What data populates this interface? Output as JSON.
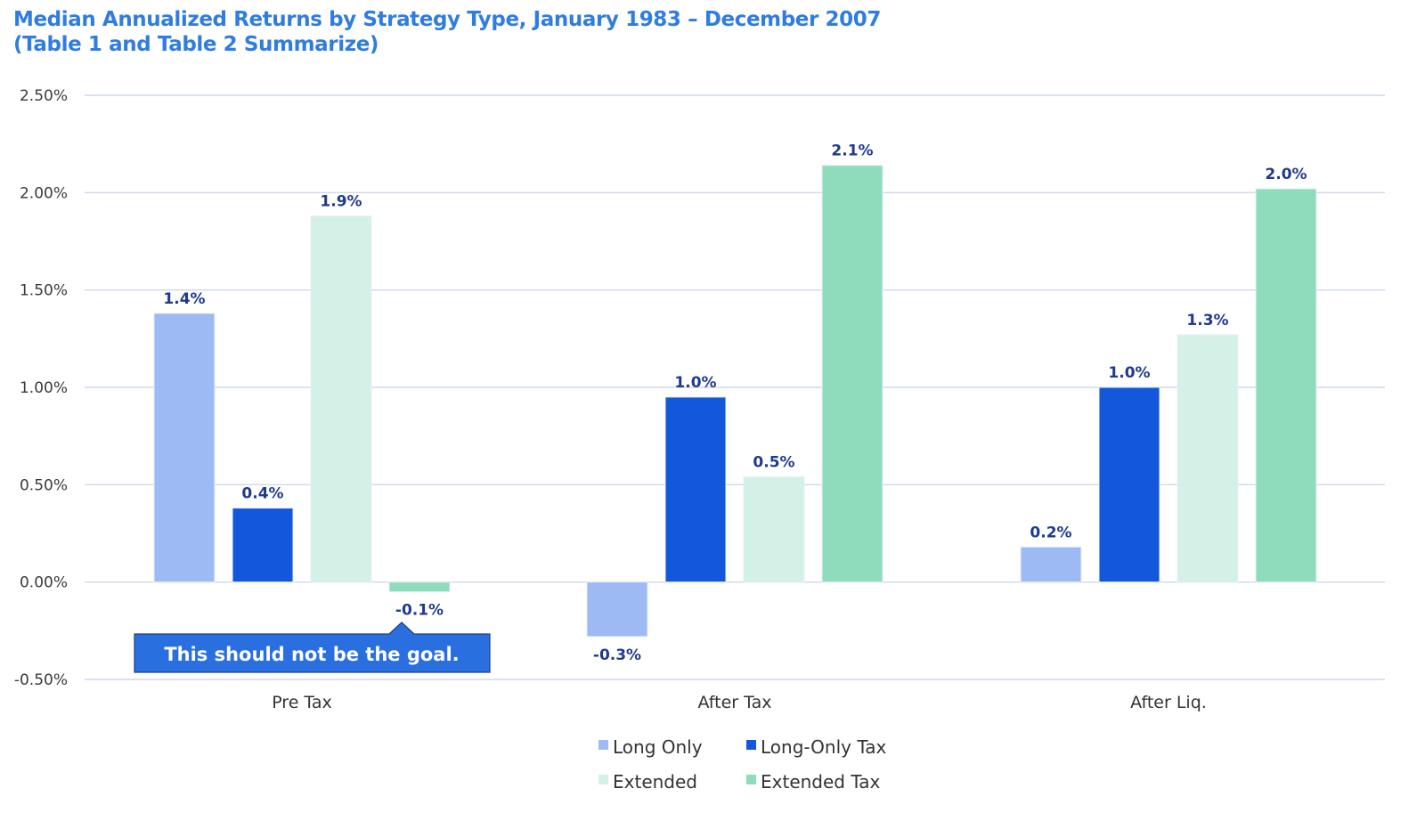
{
  "title_line1": "Median Annualized Returns by Strategy Type, January 1983 – December 2007",
  "title_line2": "(Table 1 and Table 2 Summarize)",
  "callout": "This should not be the goal.",
  "chart_data": {
    "type": "bar",
    "categories": [
      "Pre Tax",
      "After Tax",
      "After Liq."
    ],
    "series": [
      {
        "name": "Long Only",
        "color": "#9dbaf5",
        "values": [
          1.38,
          -0.28,
          0.18
        ],
        "labels": [
          "1.4%",
          "-0.3%",
          "0.2%"
        ]
      },
      {
        "name": "Long-Only Tax",
        "color": "#1357dc",
        "values": [
          0.38,
          0.95,
          1.0
        ],
        "labels": [
          "0.4%",
          "1.0%",
          "1.0%"
        ]
      },
      {
        "name": "Extended",
        "color": "#d3f1e6",
        "values": [
          1.88,
          0.54,
          1.27
        ],
        "labels": [
          "1.9%",
          "0.5%",
          "1.3%"
        ]
      },
      {
        "name": "Extended Tax",
        "color": "#8fdcbd",
        "values": [
          -0.05,
          2.14,
          2.02
        ],
        "labels": [
          "-0.1%",
          "2.1%",
          "2.0%"
        ]
      }
    ],
    "yticks": [
      "2.50%",
      "2.00%",
      "1.50%",
      "1.00%",
      "0.50%",
      "0.00%",
      "-0.50%"
    ],
    "ylim": [
      -0.5,
      2.5
    ],
    "grid": true,
    "legend_position": "bottom-center"
  }
}
